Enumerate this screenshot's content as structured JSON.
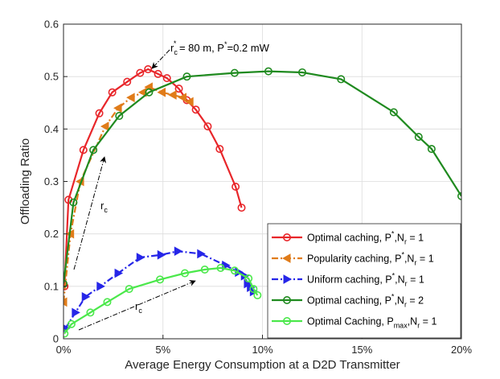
{
  "chart_data": {
    "type": "line",
    "xlabel": "Average Energy Consumption at a D2D Transmitter",
    "ylabel": "Offloading Ratio",
    "xlim": [
      0,
      20
    ],
    "ylim": [
      0,
      0.6
    ],
    "grid": true,
    "x_ticks": [
      0,
      5,
      10,
      15,
      20
    ],
    "x_tick_labels": [
      "0%",
      "5%",
      "10%",
      "15%",
      "20%"
    ],
    "y_ticks": [
      0,
      0.1,
      0.2,
      0.3,
      0.4,
      0.5,
      0.6
    ],
    "y_tick_labels": [
      "0",
      "0.1",
      "0.2",
      "0.3",
      "0.4",
      "0.5",
      "0.6"
    ],
    "legend_position": "bottom-right",
    "series": [
      {
        "name": "Optimal caching, P*,Nr = 1",
        "legend": {
          "base": "Optimal caching, P",
          "sup": "*",
          "mid": ",N",
          "sub": "r",
          "tail": " = 1"
        },
        "color": "#e8262a",
        "marker": "circle",
        "x": [
          0.05,
          0.25,
          1.0,
          1.8,
          2.45,
          3.2,
          3.85,
          4.25,
          4.75,
          5.2,
          5.8,
          6.2,
          6.65,
          7.25,
          7.85,
          8.65,
          8.95
        ],
        "y": [
          0.1,
          0.265,
          0.36,
          0.43,
          0.47,
          0.49,
          0.507,
          0.514,
          0.505,
          0.497,
          0.477,
          0.455,
          0.437,
          0.405,
          0.362,
          0.29,
          0.25
        ]
      },
      {
        "name": "Popularity caching, P*,Nr = 1",
        "legend": {
          "base": "Popularity caching, P",
          "sup": "*",
          "mid": ",N",
          "sub": "r",
          "tail": " = 1"
        },
        "color": "#e07c1a",
        "marker": "triangle-left",
        "dash": "dashdot",
        "x": [
          0.0,
          0.35,
          0.85,
          2.1,
          2.75,
          3.4,
          4.0,
          4.3,
          4.95,
          5.5,
          6.0,
          6.35
        ],
        "y": [
          0.07,
          0.2,
          0.3,
          0.405,
          0.44,
          0.46,
          0.47,
          0.48,
          0.47,
          0.465,
          0.46,
          0.452
        ]
      },
      {
        "name": "Uniform caching, P*,Nr = 1",
        "legend": {
          "base": "Uniform caching, P",
          "sup": "*",
          "mid": ",N",
          "sub": "r",
          "tail": " = 1"
        },
        "color": "#2626e8",
        "marker": "triangle-right",
        "dash": "dashdot",
        "x": [
          0.1,
          0.6,
          1.1,
          1.85,
          2.75,
          3.85,
          4.9,
          5.75,
          6.9,
          8.15,
          8.8,
          9.1,
          9.25,
          9.4,
          9.55
        ],
        "y": [
          0.02,
          0.05,
          0.08,
          0.1,
          0.125,
          0.155,
          0.16,
          0.167,
          0.162,
          0.14,
          0.127,
          0.12,
          0.105,
          0.098,
          0.09
        ]
      },
      {
        "name": "Optimal caching, P*,Nr = 2",
        "legend": {
          "base": "Optimal caching, P",
          "sup": "*",
          "mid": ",N",
          "sub": "r",
          "tail": " = 2"
        },
        "color": "#1f8a1f",
        "marker": "circle",
        "x": [
          0.0,
          0.5,
          1.5,
          2.8,
          4.3,
          6.2,
          8.6,
          10.3,
          12.0,
          13.95,
          16.6,
          17.85,
          18.5,
          20.0
        ],
        "y": [
          0.105,
          0.26,
          0.36,
          0.425,
          0.47,
          0.5,
          0.507,
          0.51,
          0.508,
          0.495,
          0.432,
          0.385,
          0.362,
          0.272
        ]
      },
      {
        "name": "Optimal Caching, Pmax,Nr = 1",
        "legend": {
          "base": "Optimal Caching, P",
          "sub1": "max",
          "mid": ",N",
          "sub": "r",
          "tail": " = 1"
        },
        "color": "#4be84b",
        "marker": "circle",
        "x": [
          0.05,
          0.4,
          1.35,
          2.2,
          3.3,
          4.85,
          6.1,
          7.1,
          7.9,
          8.6,
          9.3,
          9.55,
          9.75
        ],
        "y": [
          0.01,
          0.028,
          0.05,
          0.07,
          0.095,
          0.113,
          0.125,
          0.132,
          0.135,
          0.13,
          0.115,
          0.095,
          0.083
        ]
      }
    ],
    "annotations": [
      {
        "kind": "label",
        "base": "r",
        "sub": "c",
        "sup": "*",
        "tail": " = 80 m, P",
        "tail_sup": "*",
        "end": "=0.2 mW"
      },
      {
        "kind": "label",
        "base": "r",
        "sub": "c"
      },
      {
        "kind": "label",
        "base": "r",
        "sub": "c"
      }
    ]
  }
}
